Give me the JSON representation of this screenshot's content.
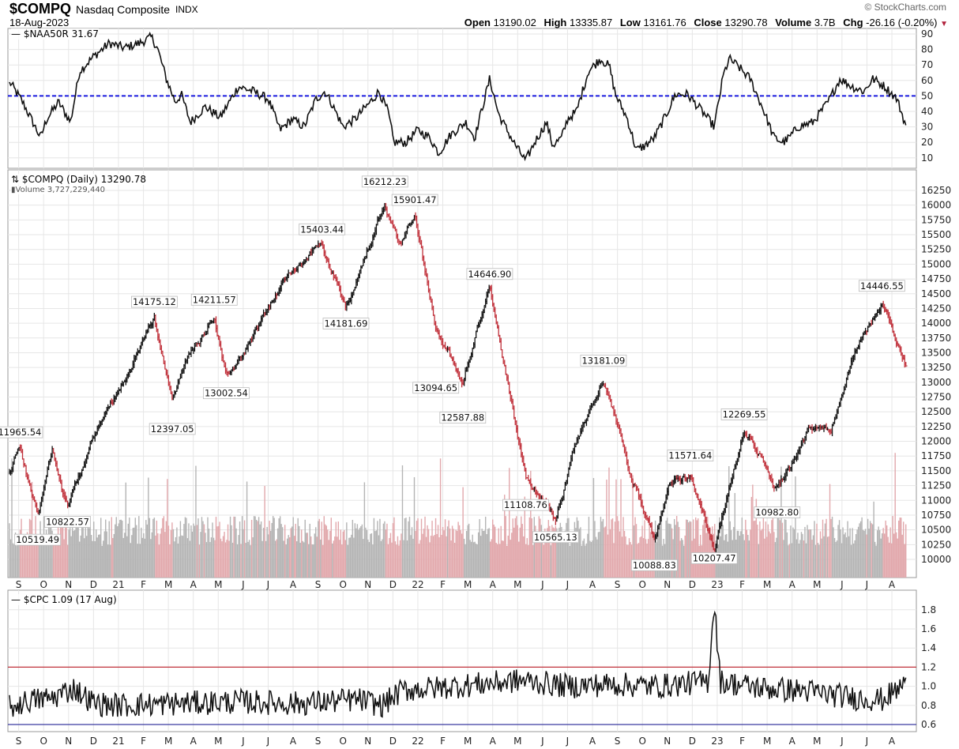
{
  "header": {
    "symbol": "$COMPQ",
    "name": "Nasdaq Composite",
    "exchange": "INDX",
    "date": "18-Aug-2023",
    "copyright": "© StockCharts.com",
    "open_label": "Open",
    "open": "13190.02",
    "high_label": "High",
    "high": "13335.87",
    "low_label": "Low",
    "low": "13161.76",
    "close_label": "Close",
    "close": "13290.78",
    "volume_label": "Volume",
    "volume": "3.7B",
    "chg_label": "Chg",
    "chg": "-26.16 (-0.20%)",
    "chg_icon": "triangle-down-icon"
  },
  "colors": {
    "up": "#111111",
    "down": "#c0303a",
    "vol_up": "#b4b4b4",
    "vol_down": "#e2a8ac",
    "ref_blue": "#1a1adf",
    "ref_red": "#c0303a",
    "cpc_low_line": "#3a3aa0",
    "grid": "#e6e6e6"
  },
  "chart_data": [
    {
      "type": "line",
      "title": "$NAA50R 31.67",
      "legend": "— $NAA50R 31.67",
      "ylim": [
        5,
        92
      ],
      "yticks": [
        "90",
        "80",
        "70",
        "60",
        "50",
        "40",
        "30",
        "20",
        "10"
      ],
      "reference_line": {
        "value": 50,
        "style": "dashed",
        "color": "blue"
      },
      "series": [
        {
          "name": "$NAA50R",
          "points": [
            [
              2020.64,
              58
            ],
            [
              2020.68,
              46
            ],
            [
              2020.74,
              23
            ],
            [
              2020.76,
              35
            ],
            [
              2020.8,
              46
            ],
            [
              2020.84,
              33
            ],
            [
              2020.87,
              66
            ],
            [
              2020.92,
              76
            ],
            [
              2020.97,
              84
            ],
            [
              2021.02,
              81
            ],
            [
              2021.07,
              84
            ],
            [
              2021.11,
              88
            ],
            [
              2021.13,
              81
            ],
            [
              2021.16,
              61
            ],
            [
              2021.19,
              46
            ],
            [
              2021.21,
              51
            ],
            [
              2021.24,
              33
            ],
            [
              2021.29,
              43
            ],
            [
              2021.34,
              36
            ],
            [
              2021.4,
              56
            ],
            [
              2021.45,
              53
            ],
            [
              2021.5,
              48
            ],
            [
              2021.54,
              28
            ],
            [
              2021.58,
              35
            ],
            [
              2021.62,
              30
            ],
            [
              2021.66,
              48
            ],
            [
              2021.69,
              53
            ],
            [
              2021.71,
              46
            ],
            [
              2021.75,
              30
            ],
            [
              2021.79,
              35
            ],
            [
              2021.85,
              48
            ],
            [
              2021.87,
              53
            ],
            [
              2021.9,
              40
            ],
            [
              2021.92,
              20
            ],
            [
              2021.96,
              20
            ],
            [
              2022.0,
              28
            ],
            [
              2022.04,
              23
            ],
            [
              2022.07,
              13
            ],
            [
              2022.11,
              25
            ],
            [
              2022.16,
              33
            ],
            [
              2022.19,
              23
            ],
            [
              2022.22,
              46
            ],
            [
              2022.24,
              61
            ],
            [
              2022.27,
              38
            ],
            [
              2022.32,
              20
            ],
            [
              2022.36,
              8
            ],
            [
              2022.39,
              20
            ],
            [
              2022.43,
              33
            ],
            [
              2022.45,
              18
            ],
            [
              2022.48,
              23
            ],
            [
              2022.5,
              35
            ],
            [
              2022.53,
              40
            ],
            [
              2022.57,
              66
            ],
            [
              2022.61,
              74
            ],
            [
              2022.64,
              69
            ],
            [
              2022.66,
              51
            ],
            [
              2022.7,
              35
            ],
            [
              2022.73,
              15
            ],
            [
              2022.76,
              18
            ],
            [
              2022.79,
              23
            ],
            [
              2022.83,
              38
            ],
            [
              2022.86,
              51
            ],
            [
              2022.9,
              51
            ],
            [
              2022.95,
              40
            ],
            [
              2022.99,
              30
            ],
            [
              2023.02,
              63
            ],
            [
              2023.04,
              74
            ],
            [
              2023.07,
              69
            ],
            [
              2023.11,
              61
            ],
            [
              2023.15,
              43
            ],
            [
              2023.19,
              23
            ],
            [
              2023.22,
              20
            ],
            [
              2023.24,
              23
            ],
            [
              2023.27,
              30
            ],
            [
              2023.32,
              33
            ],
            [
              2023.37,
              46
            ],
            [
              2023.41,
              61
            ],
            [
              2023.45,
              56
            ],
            [
              2023.49,
              53
            ],
            [
              2023.52,
              61
            ],
            [
              2023.56,
              56
            ],
            [
              2023.6,
              48
            ],
            [
              2023.63,
              31
            ]
          ]
        }
      ]
    },
    {
      "type": "bar",
      "subtype": "ohlc-with-volume",
      "title": "$COMPQ (Daily) 13290.78",
      "legend": "$COMPQ (Daily) 13290.78",
      "volume_legend": "Volume 3,727,229,440",
      "ylim": [
        9850,
        16500
      ],
      "yticks": [
        "16250",
        "16000",
        "15750",
        "15500",
        "15250",
        "15000",
        "14750",
        "14500",
        "14250",
        "14000",
        "13750",
        "13500",
        "13250",
        "13000",
        "12750",
        "12500",
        "12250",
        "12000",
        "11750",
        "11500",
        "11250",
        "11000",
        "10750",
        "10500",
        "10250",
        "10000"
      ],
      "series": [
        {
          "name": "$COMPQ close",
          "points": [
            [
              2020.636,
              11450
            ],
            [
              2020.67,
              11966
            ],
            [
              2020.73,
              10700
            ],
            [
              2020.78,
              11870
            ],
            [
              2020.83,
              10900
            ],
            [
              2020.92,
              12100
            ],
            [
              2021.0,
              12890
            ],
            [
              2021.12,
              14100
            ],
            [
              2021.18,
              12700
            ],
            [
              2021.23,
              13400
            ],
            [
              2021.32,
              14150
            ],
            [
              2021.36,
              13030
            ],
            [
              2021.45,
              13800
            ],
            [
              2021.55,
              14700
            ],
            [
              2021.68,
              15370
            ],
            [
              2021.76,
              14250
            ],
            [
              2021.89,
              16050
            ],
            [
              2021.94,
              15300
            ],
            [
              2021.99,
              15880
            ],
            [
              2022.06,
              13850
            ],
            [
              2022.15,
              13050
            ],
            [
              2022.24,
              14620
            ],
            [
              2022.36,
              11400
            ],
            [
              2022.46,
              10650
            ],
            [
              2022.52,
              11800
            ],
            [
              2022.62,
              13100
            ],
            [
              2022.7,
              11600
            ],
            [
              2022.79,
              10320
            ],
            [
              2022.84,
              11200
            ],
            [
              2022.91,
              11470
            ],
            [
              2022.99,
              10215
            ],
            [
              2023.09,
              12200
            ],
            [
              2023.2,
              11200
            ],
            [
              2023.3,
              12150
            ],
            [
              2023.38,
              12250
            ],
            [
              2023.46,
              13500
            ],
            [
              2023.55,
              14358
            ],
            [
              2023.63,
              13290
            ]
          ]
        }
      ],
      "annotations": [
        {
          "text": "11965.54",
          "t": 2020.67,
          "value": 11965.54,
          "pos": "above"
        },
        {
          "text": "10519.49",
          "t": 2020.73,
          "value": 10519.49,
          "pos": "below"
        },
        {
          "text": "10822.57",
          "t": 2020.83,
          "value": 10822.57,
          "pos": "below"
        },
        {
          "text": "14175.12",
          "t": 2021.12,
          "value": 14175.12,
          "pos": "above"
        },
        {
          "text": "12397.05",
          "t": 2021.18,
          "value": 12397.05,
          "pos": "below"
        },
        {
          "text": "14211.57",
          "t": 2021.32,
          "value": 14211.57,
          "pos": "above"
        },
        {
          "text": "13002.54",
          "t": 2021.36,
          "value": 13002.54,
          "pos": "below"
        },
        {
          "text": "15403.44",
          "t": 2021.68,
          "value": 15403.44,
          "pos": "above"
        },
        {
          "text": "14181.69",
          "t": 2021.76,
          "value": 14181.69,
          "pos": "below"
        },
        {
          "text": "16212.23",
          "t": 2021.89,
          "value": 16212.23,
          "pos": "above"
        },
        {
          "text": "15901.47",
          "t": 2021.99,
          "value": 15901.47,
          "pos": "above"
        },
        {
          "text": "13094.65",
          "t": 2022.06,
          "value": 13094.65,
          "pos": "below"
        },
        {
          "text": "12587.88",
          "t": 2022.15,
          "value": 12587.88,
          "pos": "below"
        },
        {
          "text": "14646.90",
          "t": 2022.24,
          "value": 14646.9,
          "pos": "above"
        },
        {
          "text": "11108.76",
          "t": 2022.36,
          "value": 11108.76,
          "pos": "below"
        },
        {
          "text": "10565.13",
          "t": 2022.46,
          "value": 10565.13,
          "pos": "below"
        },
        {
          "text": "13181.09",
          "t": 2022.62,
          "value": 13181.09,
          "pos": "above"
        },
        {
          "text": "10088.83",
          "t": 2022.79,
          "value": 10088.83,
          "pos": "below"
        },
        {
          "text": "11571.64",
          "t": 2022.91,
          "value": 11571.64,
          "pos": "above"
        },
        {
          "text": "10207.47",
          "t": 2022.99,
          "value": 10207.47,
          "pos": "below"
        },
        {
          "text": "12269.55",
          "t": 2023.09,
          "value": 12269.55,
          "pos": "above"
        },
        {
          "text": "10982.80",
          "t": 2023.2,
          "value": 10982.8,
          "pos": "below"
        },
        {
          "text": "14446.55",
          "t": 2023.55,
          "value": 14446.55,
          "pos": "above"
        }
      ]
    },
    {
      "type": "line",
      "title": "$CPC 1.09 (17 Aug)",
      "legend": "— $CPC 1.09 (17 Aug)",
      "ylim": [
        0.58,
        1.95
      ],
      "yticks": [
        "1.8",
        "1.6",
        "1.4",
        "1.2",
        "1.0",
        "0.8",
        "0.6"
      ],
      "reference_lines": [
        {
          "value": 1.2,
          "color": "red"
        },
        {
          "value": 0.6,
          "color": "blue"
        }
      ],
      "series": [
        {
          "name": "$CPC",
          "points": [
            [
              2020.64,
              0.78
            ],
            [
              2020.7,
              0.85
            ],
            [
              2020.78,
              0.88
            ],
            [
              2020.85,
              0.98
            ],
            [
              2020.92,
              0.82
            ],
            [
              2021.0,
              0.8
            ],
            [
              2021.2,
              0.82
            ],
            [
              2021.4,
              0.84
            ],
            [
              2021.6,
              0.82
            ],
            [
              2021.8,
              0.86
            ],
            [
              2021.88,
              0.8
            ],
            [
              2021.95,
              0.96
            ],
            [
              2022.05,
              0.98
            ],
            [
              2022.2,
              1.02
            ],
            [
              2022.35,
              1.06
            ],
            [
              2022.5,
              1.0
            ],
            [
              2022.65,
              1.02
            ],
            [
              2022.8,
              1.0
            ],
            [
              2022.97,
              1.05
            ],
            [
              2022.99,
              1.9
            ],
            [
              2023.01,
              1.05
            ],
            [
              2023.15,
              0.98
            ],
            [
              2023.3,
              0.95
            ],
            [
              2023.45,
              0.88
            ],
            [
              2023.55,
              0.86
            ],
            [
              2023.61,
              0.98
            ],
            [
              2023.63,
              1.09
            ]
          ]
        }
      ]
    }
  ],
  "x_axis": {
    "start_year": 2020.636,
    "end_year": 2023.63,
    "labels": [
      "S",
      "O",
      "N",
      "D",
      "21",
      "F",
      "M",
      "A",
      "M",
      "J",
      "J",
      "A",
      "S",
      "O",
      "N",
      "D",
      "22",
      "F",
      "M",
      "A",
      "M",
      "J",
      "J",
      "A",
      "S",
      "O",
      "N",
      "D",
      "23",
      "F",
      "M",
      "A",
      "M",
      "J",
      "J",
      "A"
    ]
  }
}
